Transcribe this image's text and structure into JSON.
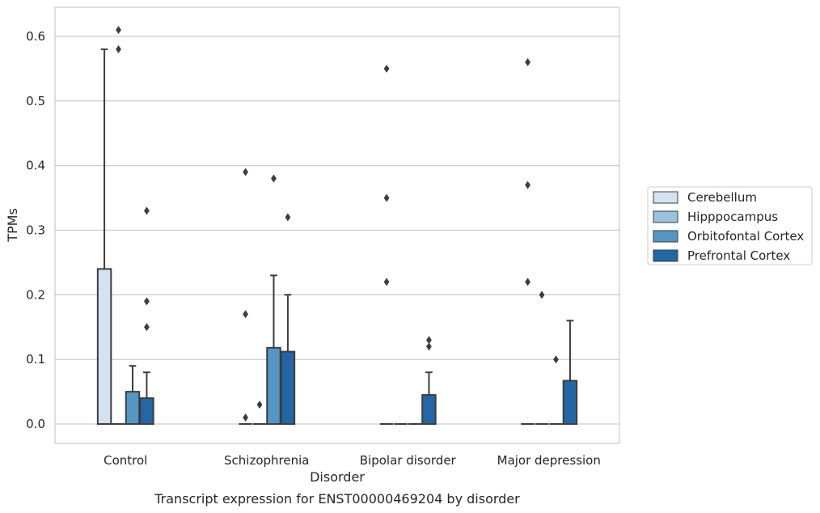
{
  "chart_data": {
    "type": "box",
    "xlabel": "Disorder",
    "ylabel": "TPMs",
    "caption": "Transcript expression for ENST00000469204 by disorder",
    "ylim": [
      -0.03,
      0.645
    ],
    "yticks": [
      "0.0",
      "0.1",
      "0.2",
      "0.3",
      "0.4",
      "0.5",
      "0.6"
    ],
    "grid": "horizontal",
    "legend_position": "right",
    "categories": [
      "Control",
      "Schizophrenia",
      "Bipolar disorder",
      "Major depression"
    ],
    "series": [
      {
        "name": "Cerebellum",
        "color": "#d4e2f0",
        "boxes": [
          {
            "q1": 0,
            "median": 0,
            "q3": 0.24,
            "whisker_low": 0,
            "whisker_high": 0.58,
            "outliers": []
          },
          {
            "q1": 0,
            "median": 0,
            "q3": 0,
            "whisker_low": 0,
            "whisker_high": 0,
            "outliers": [
              0.01,
              0.17,
              0.39
            ]
          },
          {
            "q1": 0,
            "median": 0,
            "q3": 0,
            "whisker_low": 0,
            "whisker_high": 0,
            "outliers": [
              0.22,
              0.35,
              0.55
            ]
          },
          {
            "q1": 0,
            "median": 0,
            "q3": 0,
            "whisker_low": 0,
            "whisker_high": 0,
            "outliers": [
              0.22,
              0.37,
              0.56
            ]
          }
        ]
      },
      {
        "name": "Hipppocampus",
        "color": "#9cc3dd",
        "boxes": [
          {
            "q1": 0,
            "median": 0,
            "q3": 0,
            "whisker_low": 0,
            "whisker_high": 0,
            "outliers": [
              0.58,
              0.61
            ]
          },
          {
            "q1": 0,
            "median": 0,
            "q3": 0,
            "whisker_low": 0,
            "whisker_high": 0,
            "outliers": [
              0.03
            ]
          },
          {
            "q1": 0,
            "median": 0,
            "q3": 0,
            "whisker_low": 0,
            "whisker_high": 0,
            "outliers": []
          },
          {
            "q1": 0,
            "median": 0,
            "q3": 0,
            "whisker_low": 0,
            "whisker_high": 0,
            "outliers": [
              0.2
            ]
          }
        ]
      },
      {
        "name": "Orbitofontal Cortex",
        "color": "#5596c4",
        "boxes": [
          {
            "q1": 0,
            "median": 0,
            "q3": 0.05,
            "whisker_low": 0,
            "whisker_high": 0.09,
            "outliers": []
          },
          {
            "q1": 0,
            "median": 0,
            "q3": 0.118,
            "whisker_low": 0,
            "whisker_high": 0.23,
            "outliers": [
              0.38
            ]
          },
          {
            "q1": 0,
            "median": 0,
            "q3": 0,
            "whisker_low": 0,
            "whisker_high": 0,
            "outliers": []
          },
          {
            "q1": 0,
            "median": 0,
            "q3": 0,
            "whisker_low": 0,
            "whisker_high": 0,
            "outliers": [
              0.1
            ]
          }
        ]
      },
      {
        "name": "Prefrontal Cortex",
        "color": "#2466a5",
        "boxes": [
          {
            "q1": 0,
            "median": 0,
            "q3": 0.04,
            "whisker_low": 0,
            "whisker_high": 0.08,
            "outliers": [
              0.15,
              0.19,
              0.33
            ]
          },
          {
            "q1": 0,
            "median": 0,
            "q3": 0.112,
            "whisker_low": 0,
            "whisker_high": 0.2,
            "outliers": [
              0.32
            ]
          },
          {
            "q1": 0,
            "median": 0,
            "q3": 0.045,
            "whisker_low": 0,
            "whisker_high": 0.08,
            "outliers": [
              0.12,
              0.13
            ]
          },
          {
            "q1": 0,
            "median": 0,
            "q3": 0.067,
            "whisker_low": 0,
            "whisker_high": 0.16,
            "outliers": []
          }
        ]
      }
    ]
  }
}
